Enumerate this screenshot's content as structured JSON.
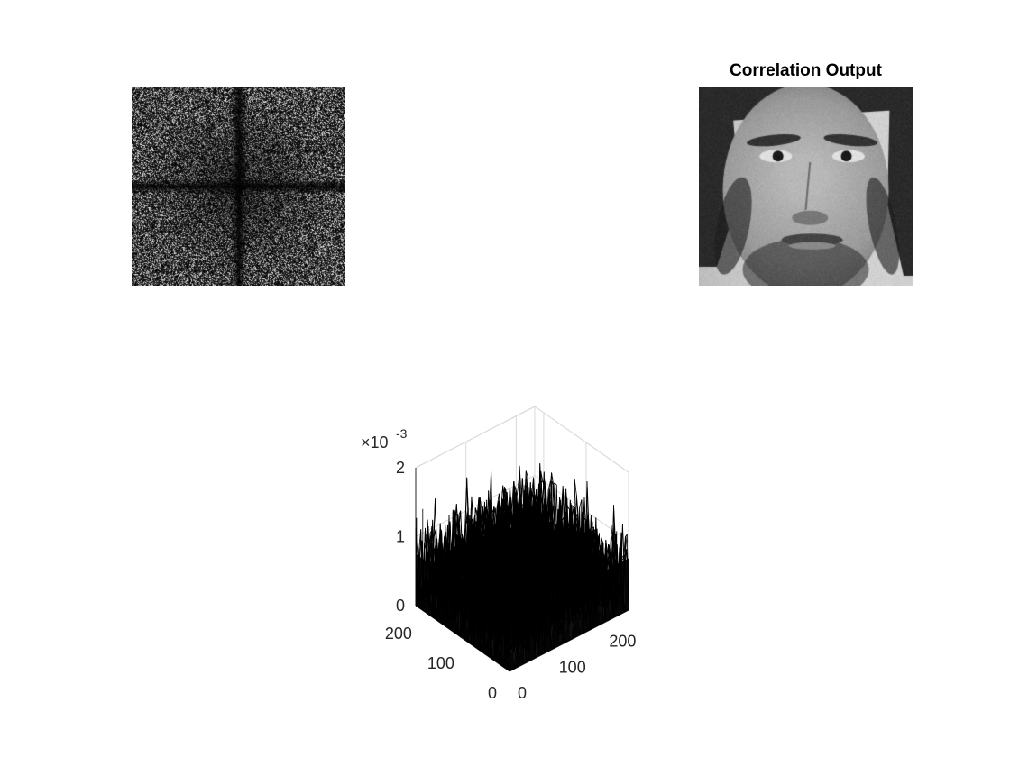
{
  "figure": {
    "background": "#ffffff"
  },
  "panels": {
    "spectrum": {
      "title": "",
      "content": "grayscale noise-like magnitude spectrum with dark central cross",
      "colormap": "gray"
    },
    "face": {
      "title": "Correlation Output",
      "content": "grayscale face image",
      "colormap": "gray"
    }
  },
  "chart_data": {
    "type": "surface",
    "title": "",
    "xlabel": "",
    "ylabel": "",
    "zlabel": "",
    "x_ticks": [
      0,
      100,
      200
    ],
    "y_ticks": [
      0,
      100,
      200
    ],
    "z_ticks": [
      0,
      1,
      2
    ],
    "z_tick_labels": [
      "0",
      "1",
      "2"
    ],
    "z_exponent_label": "×10",
    "z_exponent": "-3",
    "xlim": [
      0,
      237
    ],
    "ylim": [
      0,
      221
    ],
    "zlim": [
      0,
      0.002
    ],
    "grid": true,
    "edge_color": "#000000",
    "description": "dense noisy mesh surface, values mostly between 0 and 0.0017"
  }
}
